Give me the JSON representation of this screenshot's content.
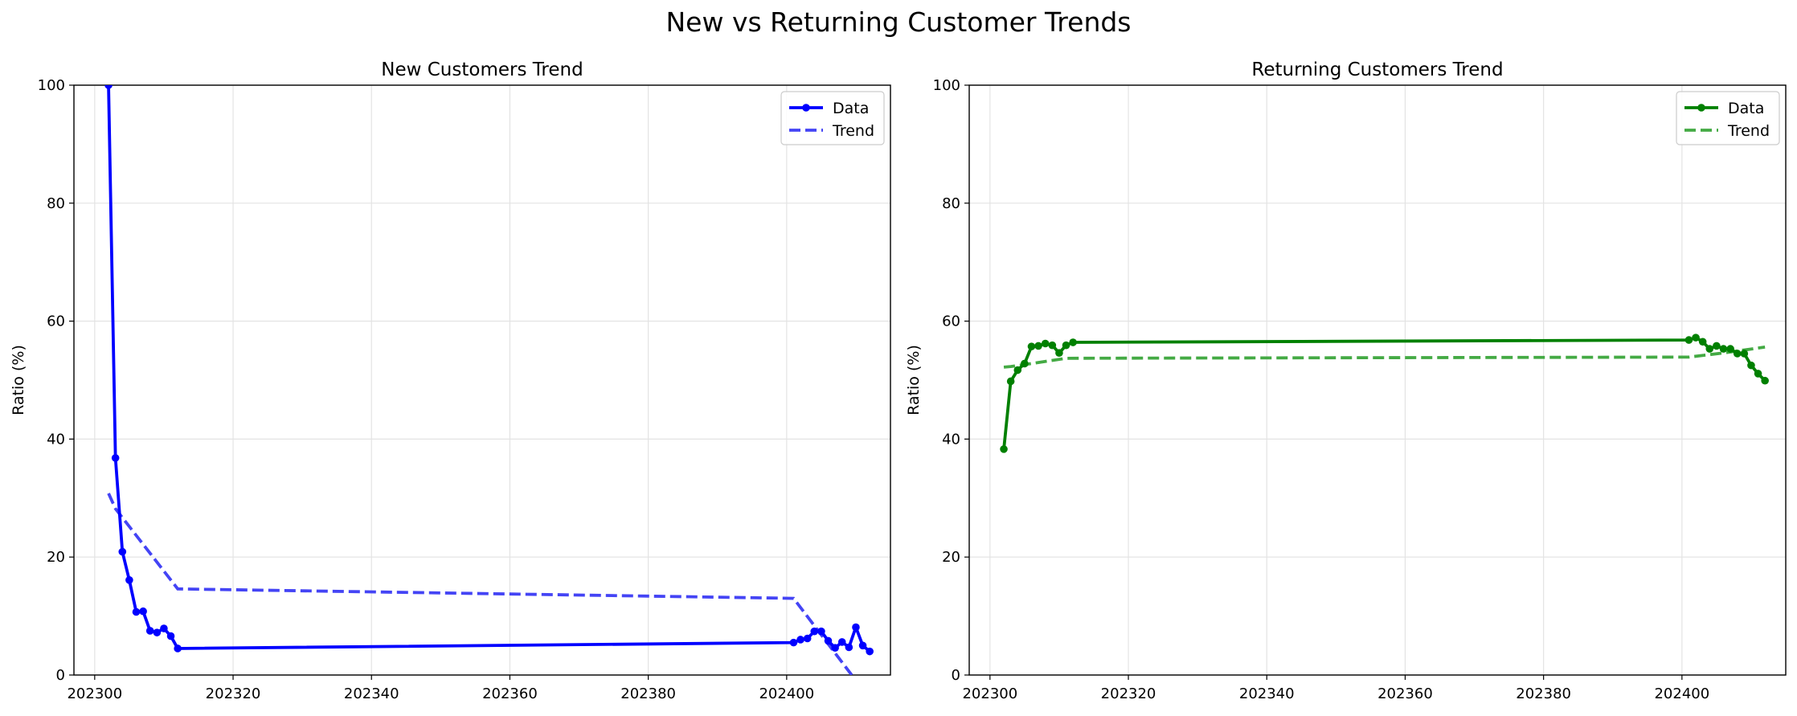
{
  "figure": {
    "title": "New vs Returning Customer Trends"
  },
  "chart_data": [
    {
      "type": "line",
      "title": "New Customers Trend",
      "xlabel": "",
      "ylabel": "Ratio (%)",
      "xlim": [
        202297,
        202415
      ],
      "ylim": [
        0,
        100
      ],
      "xticks": [
        202300,
        202320,
        202340,
        202360,
        202380,
        202400
      ],
      "yticks": [
        0,
        20,
        40,
        60,
        80,
        100
      ],
      "grid": true,
      "legend_position": "top-right",
      "color": "#0000ff",
      "trend_color": "#4444f5",
      "series": [
        {
          "name": "Data",
          "style": "solid-markers",
          "x": [
            202302,
            202303,
            202304,
            202305,
            202306,
            202307,
            202308,
            202309,
            202310,
            202311,
            202312,
            202401,
            202402,
            202403,
            202404,
            202405,
            202406,
            202407,
            202408,
            202409,
            202410,
            202411,
            202412
          ],
          "y": [
            100,
            36.8,
            20.9,
            16.1,
            10.7,
            10.8,
            7.5,
            7.2,
            7.9,
            6.6,
            4.5,
            5.5,
            6.0,
            6.2,
            7.4,
            7.4,
            5.8,
            4.6,
            5.6,
            4.7,
            8.1,
            5.0,
            4.0
          ]
        },
        {
          "name": "Trend",
          "style": "dashed",
          "x": [
            202302,
            202303,
            202312,
            202401,
            202409.4
          ],
          "y": [
            30.8,
            28.2,
            14.6,
            13.0,
            0
          ]
        }
      ]
    },
    {
      "type": "line",
      "title": "Returning Customers Trend",
      "xlabel": "",
      "ylabel": "Ratio (%)",
      "xlim": [
        202297,
        202415
      ],
      "ylim": [
        0,
        100
      ],
      "xticks": [
        202300,
        202320,
        202340,
        202360,
        202380,
        202400
      ],
      "yticks": [
        0,
        20,
        40,
        60,
        80,
        100
      ],
      "grid": true,
      "legend_position": "top-right",
      "color": "#008000",
      "trend_color": "#44aa44",
      "series": [
        {
          "name": "Data",
          "style": "solid-markers",
          "x": [
            202302,
            202303,
            202304,
            202305,
            202306,
            202307,
            202308,
            202309,
            202310,
            202311,
            202312,
            202401,
            202402,
            202403,
            202404,
            202405,
            202406,
            202407,
            202408,
            202409,
            202410,
            202411,
            202412
          ],
          "y": [
            38.3,
            49.8,
            51.7,
            52.8,
            55.7,
            55.8,
            56.2,
            55.9,
            54.6,
            55.9,
            56.4,
            56.8,
            57.2,
            56.5,
            55.3,
            55.8,
            55.3,
            55.3,
            54.5,
            54.5,
            52.5,
            51.1,
            49.9
          ]
        },
        {
          "name": "Trend",
          "style": "dashed",
          "x": [
            202302,
            202303,
            202306,
            202311,
            202401,
            202406,
            202412
          ],
          "y": [
            52.2,
            52.3,
            52.8,
            53.7,
            53.9,
            54.6,
            55.6
          ]
        }
      ]
    }
  ]
}
